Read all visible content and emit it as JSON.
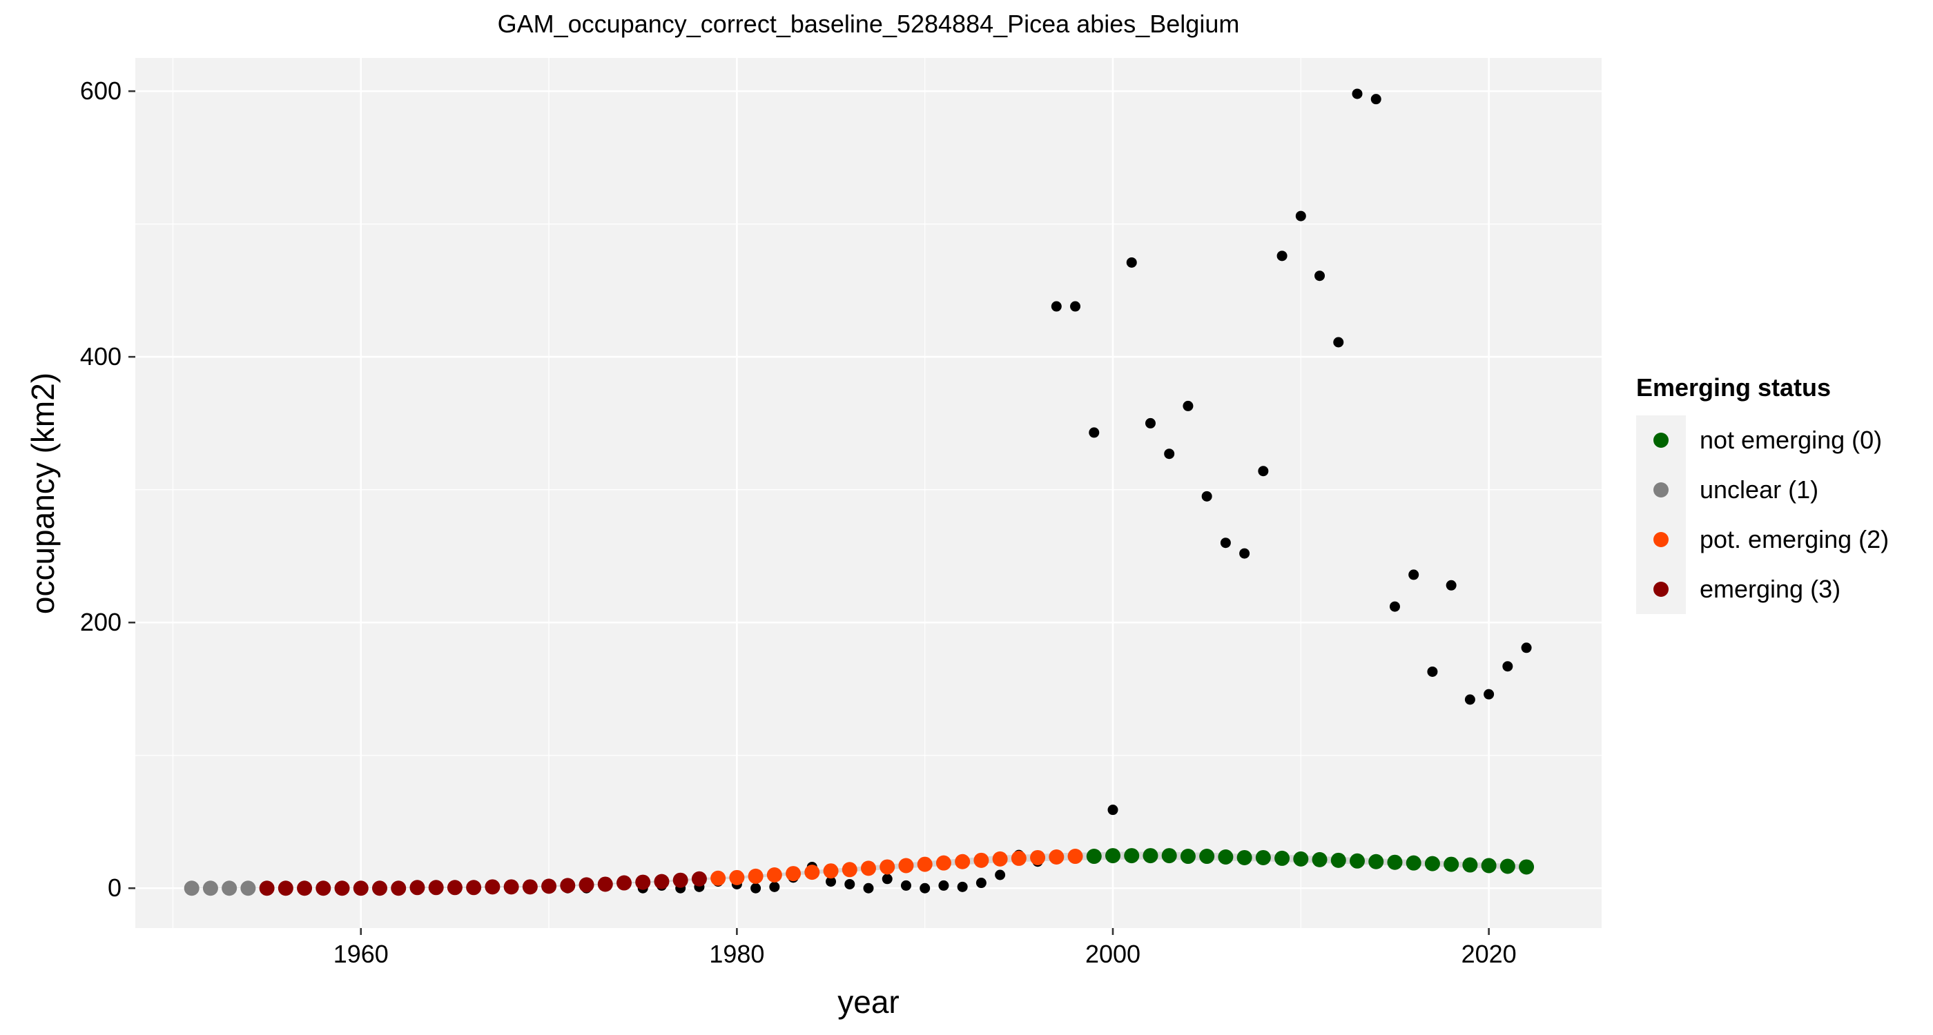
{
  "chart_data": {
    "type": "scatter",
    "title": "GAM_occupancy_correct_baseline_5284884_Picea abies_Belgium",
    "xlabel": "year",
    "ylabel": "occupancy (km2)",
    "xlim": [
      1948,
      2026
    ],
    "ylim": [
      -30,
      625
    ],
    "x_ticks": [
      1960,
      1980,
      2000,
      2020
    ],
    "y_ticks": [
      0,
      200,
      400,
      600
    ],
    "grid": true,
    "legend_position": "right",
    "legend": {
      "title": "Emerging status",
      "entries": [
        {
          "label": "not emerging (0)",
          "status": 0
        },
        {
          "label": "unclear (1)",
          "status": 1
        },
        {
          "label": "pot. emerging (2)",
          "status": 2
        },
        {
          "label": "emerging (3)",
          "status": 3
        }
      ]
    },
    "status_colors": {
      "0": "#006400",
      "1": "#808080",
      "2": "#FF4500",
      "3": "#8B0000"
    },
    "confidence_band_color": "#BEBEBE",
    "observed": {
      "color": "#000000",
      "points": [
        [
          1951,
          0
        ],
        [
          1952,
          0
        ],
        [
          1953,
          0
        ],
        [
          1954,
          0
        ],
        [
          1955,
          0
        ],
        [
          1956,
          0
        ],
        [
          1957,
          0
        ],
        [
          1958,
          0
        ],
        [
          1959,
          0
        ],
        [
          1960,
          0
        ],
        [
          1961,
          0
        ],
        [
          1962,
          0
        ],
        [
          1963,
          0
        ],
        [
          1964,
          0
        ],
        [
          1965,
          0
        ],
        [
          1966,
          0
        ],
        [
          1967,
          0
        ],
        [
          1968,
          0
        ],
        [
          1969,
          0
        ],
        [
          1970,
          0
        ],
        [
          1971,
          0
        ],
        [
          1972,
          0
        ],
        [
          1973,
          2
        ],
        [
          1974,
          4
        ],
        [
          1975,
          0
        ],
        [
          1976,
          2
        ],
        [
          1977,
          0
        ],
        [
          1978,
          1
        ],
        [
          1979,
          5
        ],
        [
          1980,
          3
        ],
        [
          1981,
          0
        ],
        [
          1982,
          1
        ],
        [
          1983,
          8
        ],
        [
          1984,
          16
        ],
        [
          1985,
          5
        ],
        [
          1986,
          3
        ],
        [
          1987,
          0
        ],
        [
          1988,
          7
        ],
        [
          1989,
          2
        ],
        [
          1990,
          0
        ],
        [
          1991,
          2
        ],
        [
          1992,
          1
        ],
        [
          1993,
          4
        ],
        [
          1994,
          10
        ],
        [
          1995,
          25
        ],
        [
          1996,
          20
        ],
        [
          1997,
          438
        ],
        [
          1998,
          438
        ],
        [
          1999,
          343
        ],
        [
          2000,
          59
        ],
        [
          2001,
          471
        ],
        [
          2002,
          350
        ],
        [
          2003,
          327
        ],
        [
          2004,
          363
        ],
        [
          2005,
          295
        ],
        [
          2006,
          260
        ],
        [
          2007,
          252
        ],
        [
          2008,
          314
        ],
        [
          2009,
          476
        ],
        [
          2010,
          506
        ],
        [
          2011,
          461
        ],
        [
          2012,
          411
        ],
        [
          2013,
          598
        ],
        [
          2014,
          594
        ],
        [
          2015,
          212
        ],
        [
          2016,
          236
        ],
        [
          2017,
          163
        ],
        [
          2018,
          228
        ],
        [
          2019,
          142
        ],
        [
          2020,
          146
        ],
        [
          2021,
          167
        ],
        [
          2022,
          181
        ]
      ]
    },
    "fitted": {
      "points": [
        [
          1951,
          0,
          1
        ],
        [
          1952,
          0,
          1
        ],
        [
          1953,
          0,
          1
        ],
        [
          1954,
          0,
          1
        ],
        [
          1955,
          0,
          3
        ],
        [
          1956,
          0,
          3
        ],
        [
          1957,
          0,
          3
        ],
        [
          1958,
          0,
          3
        ],
        [
          1959,
          0,
          3
        ],
        [
          1960,
          0,
          3
        ],
        [
          1961,
          0,
          3
        ],
        [
          1962,
          0,
          3
        ],
        [
          1963,
          0.5,
          3
        ],
        [
          1964,
          0.5,
          3
        ],
        [
          1965,
          0.5,
          3
        ],
        [
          1966,
          0.5,
          3
        ],
        [
          1967,
          1,
          3
        ],
        [
          1968,
          1,
          3
        ],
        [
          1969,
          1,
          3
        ],
        [
          1970,
          1.5,
          3
        ],
        [
          1971,
          2,
          3
        ],
        [
          1972,
          2.5,
          3
        ],
        [
          1973,
          3,
          3
        ],
        [
          1974,
          4,
          3
        ],
        [
          1975,
          4.5,
          3
        ],
        [
          1976,
          5,
          3
        ],
        [
          1977,
          6,
          3
        ],
        [
          1978,
          7,
          3
        ],
        [
          1979,
          7.5,
          2
        ],
        [
          1980,
          8,
          2
        ],
        [
          1981,
          9,
          2
        ],
        [
          1982,
          10,
          2
        ],
        [
          1983,
          11,
          2
        ],
        [
          1984,
          12,
          2
        ],
        [
          1985,
          13,
          2
        ],
        [
          1986,
          14,
          2
        ],
        [
          1987,
          15,
          2
        ],
        [
          1988,
          16,
          2
        ],
        [
          1989,
          17,
          2
        ],
        [
          1990,
          18,
          2
        ],
        [
          1991,
          19,
          2
        ],
        [
          1992,
          20,
          2
        ],
        [
          1993,
          21,
          2
        ],
        [
          1994,
          22,
          2
        ],
        [
          1995,
          22.5,
          2
        ],
        [
          1996,
          23,
          2
        ],
        [
          1997,
          23.5,
          2
        ],
        [
          1998,
          24,
          2
        ],
        [
          1999,
          24,
          0
        ],
        [
          2000,
          24.5,
          0
        ],
        [
          2001,
          24.5,
          0
        ],
        [
          2002,
          24.5,
          0
        ],
        [
          2003,
          24.5,
          0
        ],
        [
          2004,
          24,
          0
        ],
        [
          2005,
          24,
          0
        ],
        [
          2006,
          23.5,
          0
        ],
        [
          2007,
          23,
          0
        ],
        [
          2008,
          23,
          0
        ],
        [
          2009,
          22.5,
          0
        ],
        [
          2010,
          22,
          0
        ],
        [
          2011,
          21.5,
          0
        ],
        [
          2012,
          21,
          0
        ],
        [
          2013,
          20.5,
          0
        ],
        [
          2014,
          20,
          0
        ],
        [
          2015,
          19.5,
          0
        ],
        [
          2016,
          19,
          0
        ],
        [
          2017,
          18.5,
          0
        ],
        [
          2018,
          18,
          0
        ],
        [
          2019,
          17.5,
          0
        ],
        [
          2020,
          17,
          0
        ],
        [
          2021,
          16.5,
          0
        ],
        [
          2022,
          16,
          0
        ]
      ]
    }
  }
}
